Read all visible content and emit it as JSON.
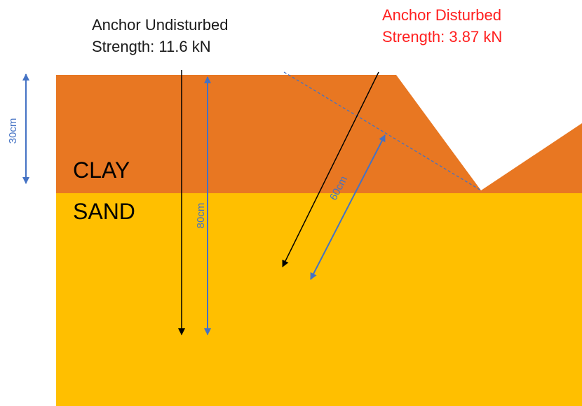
{
  "undisturbed": {
    "line1": "Anchor Undisturbed",
    "line2": "Strength: 11.6 kN"
  },
  "disturbed": {
    "line1": "Anchor Disturbed",
    "line2": "Strength: 3.87 kN"
  },
  "layers": {
    "clay": "CLAY",
    "sand": "SAND"
  },
  "dimensions": {
    "clay_thickness": "30cm",
    "vertical_anchor_length": "80cm",
    "inclined_anchor_length": "60cm"
  },
  "colors": {
    "clay": "#e87722",
    "sand": "#ffbf00",
    "dimension_arrow": "#4472c4",
    "anchor_arrow": "#000000",
    "disturbed_text": "#ff1f1f",
    "slope_line": "#4472c4"
  }
}
